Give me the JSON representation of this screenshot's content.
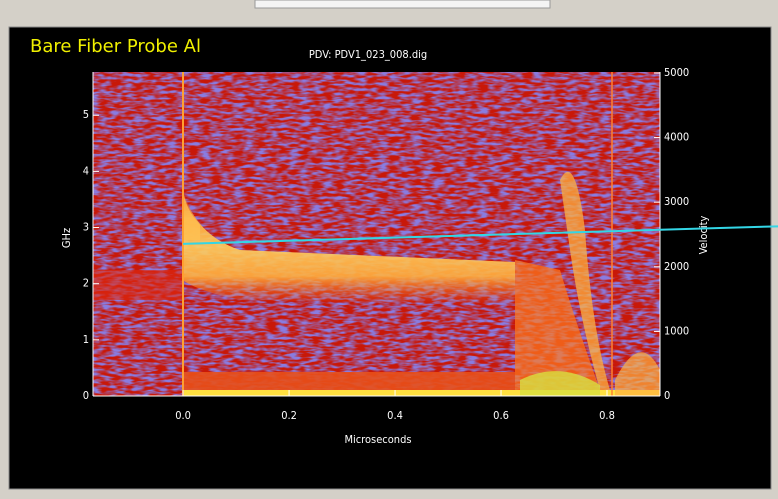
{
  "chart_data": {
    "type": "spectrogram",
    "title": "PDV: PDV1_023_008.dig",
    "annotation": "Bare Fiber Probe Al",
    "x_label": "Microseconds",
    "y_label": "GHz",
    "y2_label": "Velocity",
    "xlim": [
      -0.17,
      0.9
    ],
    "xticks": [
      {
        "value": 0,
        "label": "0.0"
      },
      0.2,
      0.4,
      0.6,
      0.8
    ],
    "ylim": [
      0,
      5.77
    ],
    "yticks": [
      0,
      1,
      2,
      3,
      4,
      5
    ],
    "y2lim": [
      0,
      5015
    ],
    "y2ticks": [
      0,
      1000,
      2000,
      3000,
      4000,
      5000
    ],
    "fit_line": {
      "color": "#33d6e6",
      "x": [
        0.0,
        0.9
      ],
      "y": [
        2.71,
        2.96
      ]
    }
  }
}
